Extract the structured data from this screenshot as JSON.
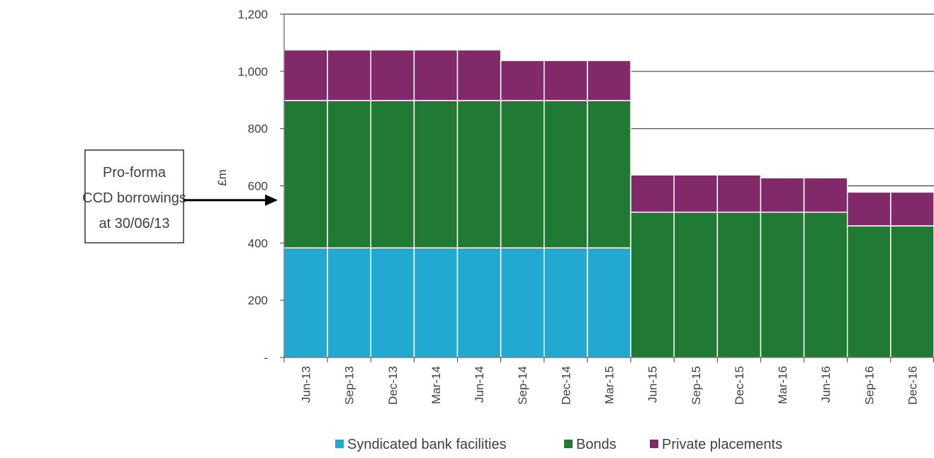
{
  "chart_data": {
    "type": "bar",
    "stacked": true,
    "categories": [
      "Jun-13",
      "Sep-13",
      "Dec-13",
      "Mar-14",
      "Jun-14",
      "Sep-14",
      "Dec-14",
      "Mar-15",
      "Jun-15",
      "Sep-15",
      "Dec-15",
      "Mar-16",
      "Jun-16",
      "Sep-16",
      "Dec-16"
    ],
    "series": [
      {
        "name": "Syndicated bank facilities",
        "color": "#23a8d0",
        "values": [
          383,
          383,
          383,
          383,
          383,
          383,
          383,
          383,
          0,
          0,
          0,
          0,
          0,
          0,
          0
        ]
      },
      {
        "name": "Bonds",
        "color": "#217a34",
        "values": [
          515,
          515,
          515,
          515,
          515,
          515,
          515,
          515,
          508,
          508,
          508,
          508,
          508,
          460,
          460
        ]
      },
      {
        "name": "Private placements",
        "color": "#82296a",
        "values": [
          177,
          177,
          177,
          177,
          177,
          140,
          140,
          140,
          130,
          130,
          130,
          120,
          120,
          118,
          118
        ]
      }
    ],
    "ylabel": "£m",
    "ylim": [
      0,
      1200
    ],
    "yticks": [
      {
        "value": 0,
        "label": "-"
      },
      {
        "value": 200,
        "label": "200"
      },
      {
        "value": 400,
        "label": "400"
      },
      {
        "value": 600,
        "label": "600"
      },
      {
        "value": 800,
        "label": "800"
      },
      {
        "value": 1000,
        "label": "1,000"
      },
      {
        "value": 1200,
        "label": "1,200"
      }
    ],
    "grid": true,
    "legend_position": "bottom",
    "annotation": {
      "lines": [
        "Pro-forma",
        "CCD borrowings",
        "at 30/06/13"
      ],
      "points_to_value": 550
    }
  }
}
